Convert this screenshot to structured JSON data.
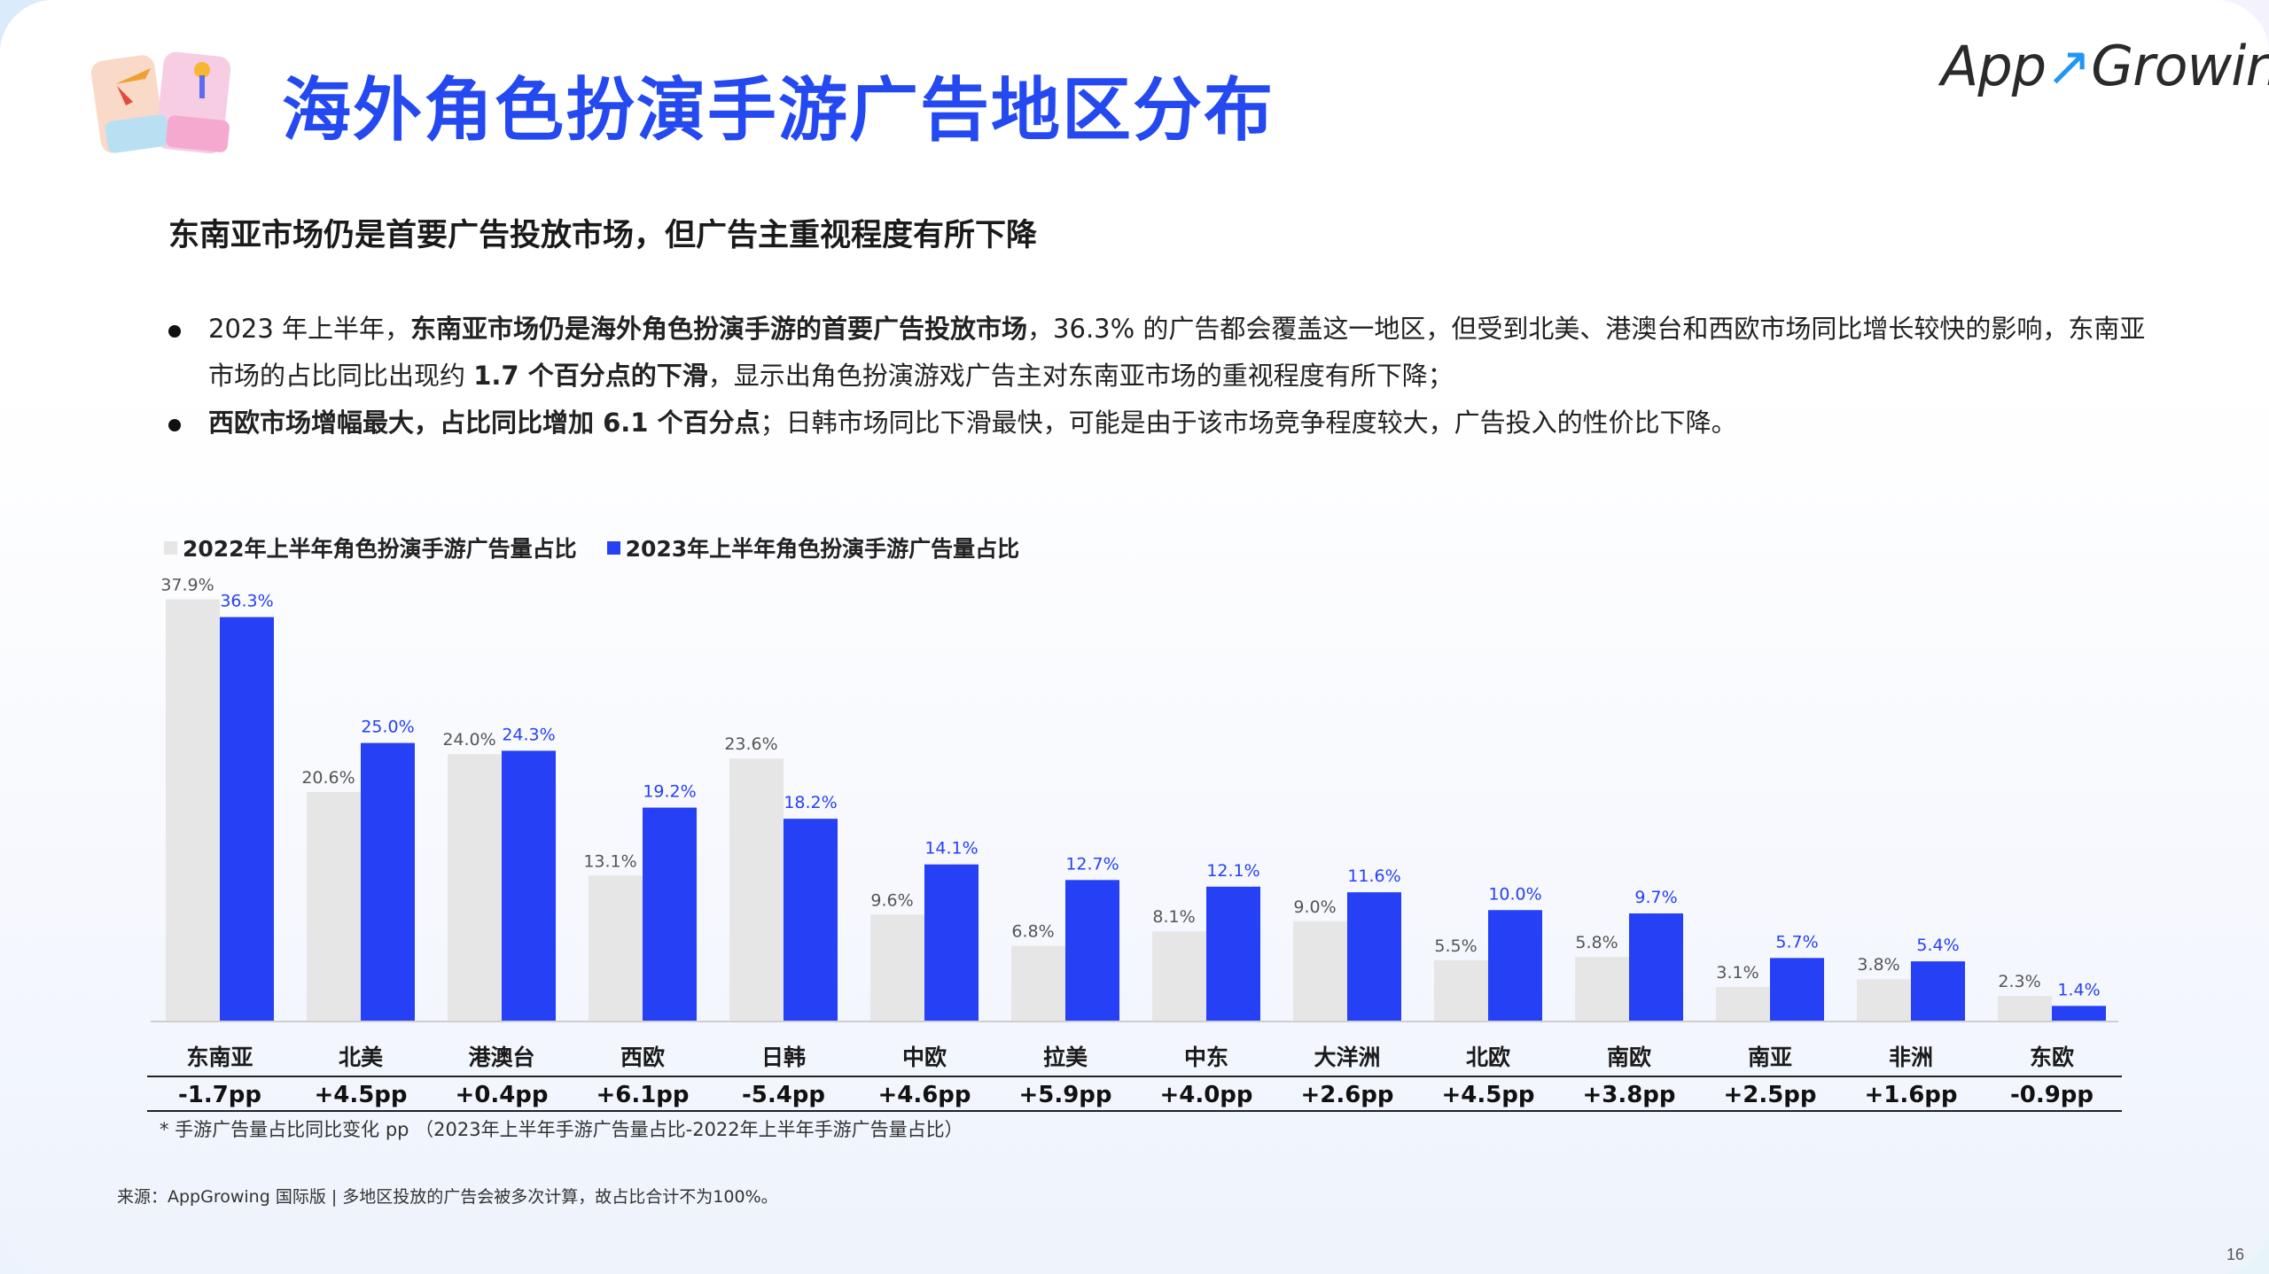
{
  "header": {
    "title": "海外角色扮演手游广告地区分布",
    "logo_text": "AppGrowing",
    "icon": "role-play-game-icon"
  },
  "subtitle": "东南亚市场仍是首要广告投放市场，但广告主重视程度有所下降",
  "bullets": [
    {
      "p1": "2023 年上半年，",
      "b1": "东南亚市场仍是海外角色扮演手游的首要广告投放市场",
      "p2": "，36.3% 的广告都会覆盖这一地区，但受到北美、港澳台和西欧市场同比增长较快的影响，东南亚市场的占比同比出现约 ",
      "b2": "1.7 个百分点的下滑",
      "p3": "，显示出角色扮演游戏广告主对东南亚市场的重视程度有所下降；"
    },
    {
      "b1": "西欧市场增幅最大，占比同比增加 6.1 个百分点",
      "p1": "；日韩市场同比下滑最快，可能是由于该市场竞争程度较大，广告投入的性价比下降。"
    }
  ],
  "legend": {
    "series_2022": "2022年上半年角色扮演手游广告量占比",
    "series_2023": "2023年上半年角色扮演手游广告量占比"
  },
  "colors": {
    "series_2022": "#e6e6e6",
    "series_2023": "#2640f5",
    "title": "#2449f0",
    "label_2023": "#2640f5",
    "label_2022": "#555555"
  },
  "chart_data": {
    "type": "bar",
    "categories": [
      "东南亚",
      "北美",
      "港澳台",
      "西欧",
      "日韩",
      "中欧",
      "拉美",
      "中东",
      "大洋洲",
      "北欧",
      "南欧",
      "南亚",
      "非洲",
      "东欧"
    ],
    "series": [
      {
        "name": "2022年上半年角色扮演手游广告量占比",
        "values": [
          37.9,
          20.6,
          24.0,
          13.1,
          23.6,
          9.6,
          6.8,
          8.1,
          9.0,
          5.5,
          5.8,
          3.1,
          3.8,
          2.3
        ]
      },
      {
        "name": "2023年上半年角色扮演手游广告量占比",
        "values": [
          36.3,
          25.0,
          24.3,
          19.2,
          18.2,
          14.1,
          12.7,
          12.1,
          11.6,
          10.0,
          9.7,
          5.7,
          5.4,
          1.4
        ]
      }
    ],
    "changes": [
      "-1.7pp",
      "+4.5pp",
      "+0.4pp",
      "+6.1pp",
      "-5.4pp",
      "+4.6pp",
      "+5.9pp",
      "+4.0pp",
      "+2.6pp",
      "+4.5pp",
      "+3.8pp",
      "+2.5pp",
      "+1.6pp",
      "-0.9pp"
    ],
    "ylim": [
      0,
      40
    ],
    "unit": "%",
    "grid": false,
    "legend_position": "top-left"
  },
  "footnote": "* 手游广告量占比同比变化 pp （2023年上半年手游广告量占比-2022年上半年手游广告量占比）",
  "source": "来源：AppGrowing 国际版 | 多地区投放的广告会被多次计算，故占比合计不为100%。",
  "page_number": "16"
}
